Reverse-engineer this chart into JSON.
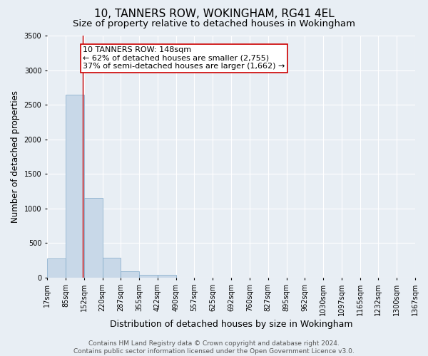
{
  "title1": "10, TANNERS ROW, WOKINGHAM, RG41 4EL",
  "title2": "Size of property relative to detached houses in Wokingham",
  "xlabel": "Distribution of detached houses by size in Wokingham",
  "ylabel": "Number of detached properties",
  "bin_edges": [
    17,
    85,
    152,
    220,
    287,
    355,
    422,
    490,
    557,
    625,
    692,
    760,
    827,
    895,
    962,
    1030,
    1097,
    1165,
    1232,
    1300,
    1367
  ],
  "bin_counts": [
    280,
    2650,
    1150,
    290,
    90,
    40,
    40,
    0,
    0,
    0,
    0,
    0,
    0,
    0,
    0,
    0,
    0,
    0,
    0,
    0
  ],
  "bar_color": "#c8d8e8",
  "bar_edge_color": "#7fa8c8",
  "property_size": 148,
  "red_line_color": "#cc0000",
  "annotation_text": "10 TANNERS ROW: 148sqm\n← 62% of detached houses are smaller (2,755)\n37% of semi-detached houses are larger (1,662) →",
  "annotation_box_color": "#ffffff",
  "annotation_box_edge_color": "#cc0000",
  "ylim": [
    0,
    3500
  ],
  "yticks": [
    0,
    500,
    1000,
    1500,
    2000,
    2500,
    3000,
    3500
  ],
  "background_color": "#e8eef4",
  "grid_color": "#ffffff",
  "footer_text": "Contains HM Land Registry data © Crown copyright and database right 2024.\nContains public sector information licensed under the Open Government Licence v3.0.",
  "title1_fontsize": 11,
  "title2_fontsize": 9.5,
  "xlabel_fontsize": 9,
  "ylabel_fontsize": 8.5,
  "annotation_fontsize": 8,
  "tick_fontsize": 7,
  "footer_fontsize": 6.5
}
